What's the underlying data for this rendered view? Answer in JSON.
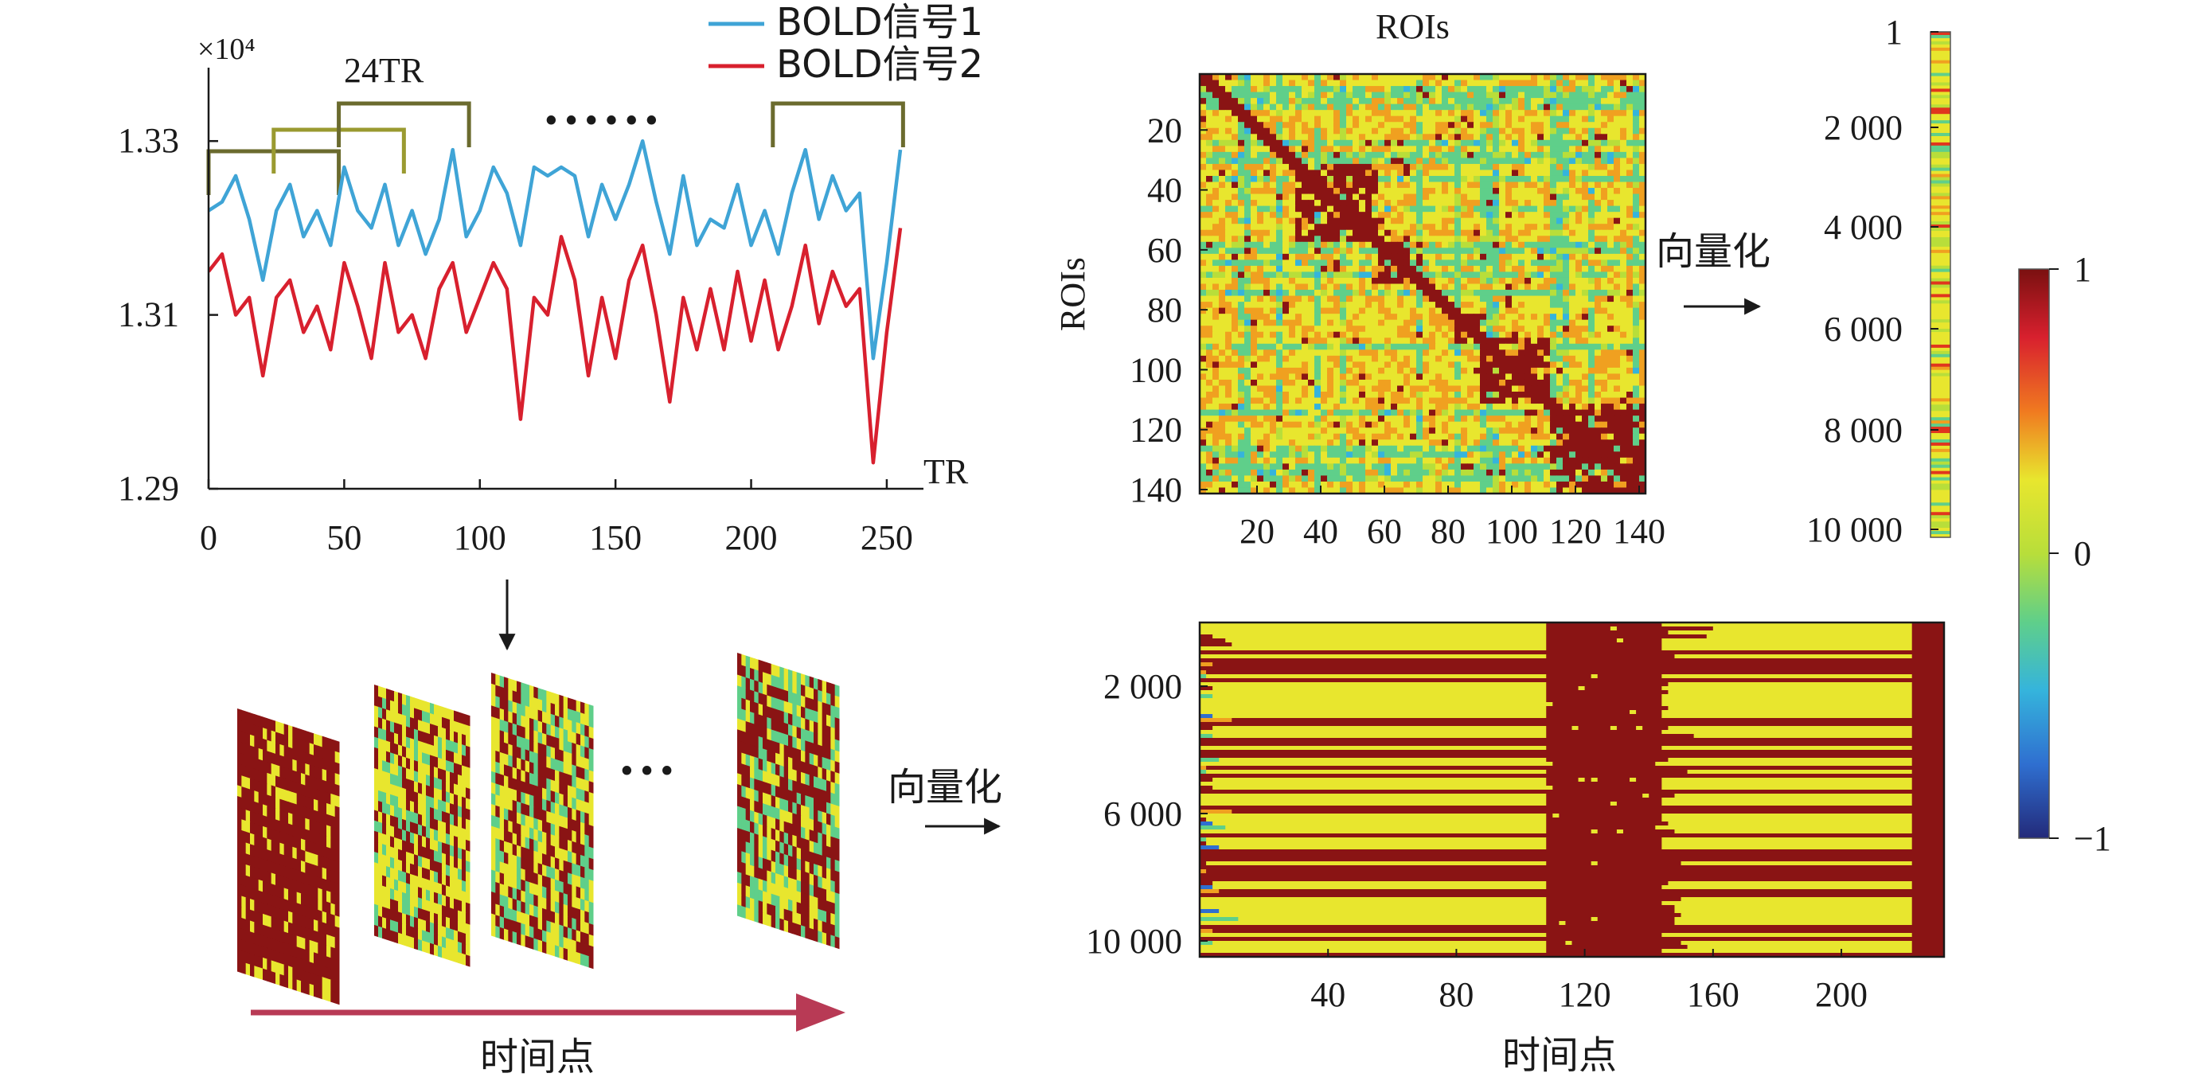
{
  "colors": {
    "bold1": "#3fa4d6",
    "bold2": "#d8202e",
    "bracket": "#6b6b2e",
    "axis": "#1a1a1a",
    "arrow_red": "#b83a55",
    "colormap": [
      "#2a2a8c",
      "#2f6fd0",
      "#35b4dc",
      "#5fcf8a",
      "#b8de3a",
      "#e8e62e",
      "#f0a020",
      "#e0351e",
      "#8a1414"
    ]
  },
  "chart_data": [
    {
      "id": "bold-timeseries",
      "type": "line",
      "x_ticks": [
        "0",
        "50",
        "100",
        "150",
        "200",
        "250"
      ],
      "y_ticks": [
        "1.29",
        "1.31",
        "1.33"
      ],
      "y_multiplier": "×10⁴",
      "xlabel": "TR",
      "xlim": [
        0,
        260
      ],
      "ylim": [
        1.29,
        1.34
      ],
      "window_label": "24TR",
      "ellipsis": "• • • • • •",
      "windows": [
        [
          0,
          48
        ],
        [
          24,
          72
        ],
        [
          48,
          96
        ],
        [
          208,
          256
        ]
      ],
      "legend": [
        "BOLD信号1",
        "BOLD信号2"
      ],
      "legend_position": "top-right",
      "series": [
        {
          "name": "BOLD信号1",
          "x": [
            0,
            5,
            10,
            15,
            20,
            25,
            30,
            35,
            40,
            45,
            50,
            55,
            60,
            65,
            70,
            75,
            80,
            85,
            90,
            95,
            100,
            105,
            110,
            115,
            120,
            125,
            130,
            135,
            140,
            145,
            150,
            155,
            160,
            165,
            170,
            175,
            180,
            185,
            190,
            195,
            200,
            205,
            210,
            215,
            220,
            225,
            230,
            235,
            240,
            245,
            250,
            255
          ],
          "y": [
            1.322,
            1.323,
            1.326,
            1.321,
            1.314,
            1.322,
            1.325,
            1.319,
            1.322,
            1.318,
            1.327,
            1.322,
            1.32,
            1.325,
            1.318,
            1.322,
            1.317,
            1.321,
            1.329,
            1.319,
            1.322,
            1.327,
            1.324,
            1.318,
            1.327,
            1.326,
            1.327,
            1.326,
            1.319,
            1.325,
            1.321,
            1.325,
            1.33,
            1.323,
            1.317,
            1.326,
            1.318,
            1.321,
            1.32,
            1.325,
            1.318,
            1.322,
            1.317,
            1.324,
            1.329,
            1.321,
            1.326,
            1.322,
            1.324,
            1.305,
            1.316,
            1.329
          ]
        },
        {
          "name": "BOLD信号2",
          "x": [
            0,
            5,
            10,
            15,
            20,
            25,
            30,
            35,
            40,
            45,
            50,
            55,
            60,
            65,
            70,
            75,
            80,
            85,
            90,
            95,
            100,
            105,
            110,
            115,
            120,
            125,
            130,
            135,
            140,
            145,
            150,
            155,
            160,
            165,
            170,
            175,
            180,
            185,
            190,
            195,
            200,
            205,
            210,
            215,
            220,
            225,
            230,
            235,
            240,
            245,
            250,
            255
          ],
          "y": [
            1.315,
            1.317,
            1.31,
            1.312,
            1.303,
            1.312,
            1.314,
            1.308,
            1.311,
            1.306,
            1.316,
            1.311,
            1.305,
            1.316,
            1.308,
            1.31,
            1.305,
            1.313,
            1.316,
            1.308,
            1.312,
            1.316,
            1.313,
            1.298,
            1.312,
            1.31,
            1.319,
            1.314,
            1.303,
            1.312,
            1.305,
            1.314,
            1.318,
            1.31,
            1.3,
            1.312,
            1.306,
            1.313,
            1.306,
            1.315,
            1.307,
            1.314,
            1.306,
            1.311,
            1.318,
            1.309,
            1.315,
            1.311,
            1.313,
            1.293,
            1.308,
            1.32
          ]
        }
      ]
    },
    {
      "id": "roi-correlation-matrix",
      "type": "heatmap",
      "title": "ROIs",
      "ylabel": "ROIs",
      "x_ticks": [
        "20",
        "40",
        "60",
        "80",
        "100",
        "120",
        "140"
      ],
      "y_ticks": [
        "20",
        "40",
        "60",
        "80",
        "100",
        "120",
        "140"
      ],
      "size": 140,
      "diagonal_value": 1,
      "blocks": [
        [
          30,
          55
        ],
        [
          55,
          70
        ],
        [
          80,
          90
        ],
        [
          88,
          110
        ],
        [
          110,
          140
        ]
      ],
      "background_value": 0.3
    },
    {
      "id": "vectorized-column",
      "type": "heatmap",
      "y_ticks": [
        "1",
        "2 000",
        "4 000",
        "6 000",
        "8 000",
        "10 000"
      ],
      "label": "向量化"
    },
    {
      "id": "colorbar",
      "type": "heatmap",
      "range": [
        -1,
        1
      ],
      "ticks": [
        "1",
        "0",
        "−1"
      ]
    },
    {
      "id": "dynamic-fc-matrix",
      "type": "heatmap",
      "x_ticks": [
        "40",
        "80",
        "120",
        "160",
        "200"
      ],
      "y_ticks": [
        "2 000",
        "6 000",
        "10 000"
      ],
      "xlabel": "时间点",
      "x_range": [
        0,
        232
      ],
      "y_range": [
        0,
        10500
      ],
      "high_band": [
        108,
        145
      ],
      "label": "向量化"
    },
    {
      "id": "window-stack",
      "type": "heatmap",
      "ellipsis": "• • •",
      "xlabel": "时间点"
    }
  ]
}
